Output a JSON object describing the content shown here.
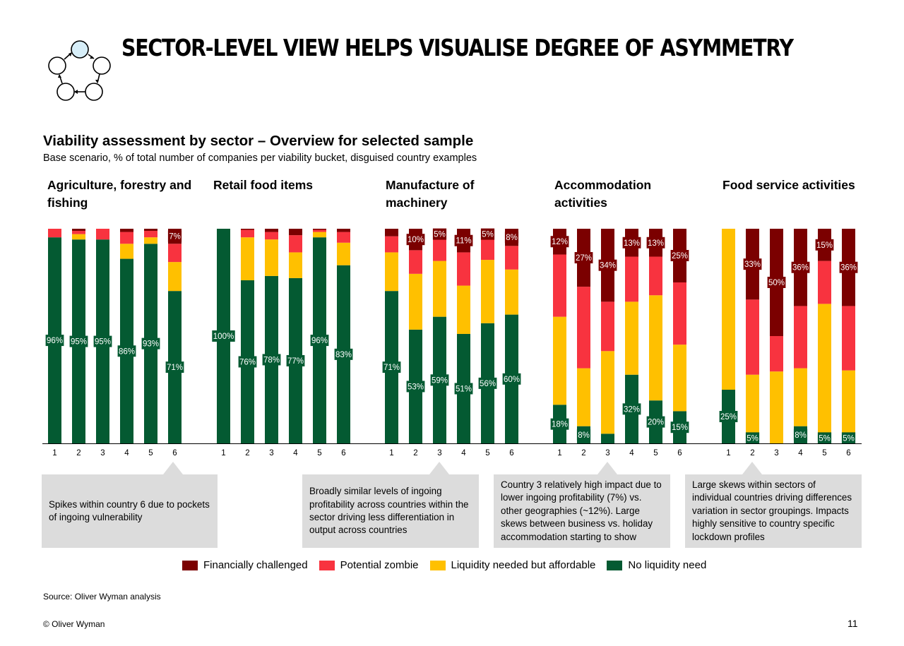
{
  "title": "SECTOR-LEVEL VIEW HELPS VISUALISE DEGREE OF ASYMMETRY",
  "subtitle_heading": "Viability assessment by sector – Overview for selected sample",
  "subtitle_detail": "Base scenario, % of total number of companies per viability bucket, disguised country examples",
  "logo_icon": "cycle-circles-icon",
  "colors": {
    "financially_challenged": "#7b0000",
    "potential_zombie": "#f8333f",
    "liquidity_needed": "#ffc000",
    "no_liquidity_need": "#045a32",
    "callout_bg": "#dcdcdc"
  },
  "legend": [
    {
      "label": "Financially challenged",
      "color": "#7b0000"
    },
    {
      "label": "Potential zombie",
      "color": "#f8333f"
    },
    {
      "label": "Liquidity needed but affordable",
      "color": "#ffc000"
    },
    {
      "label": "No liquidity need",
      "color": "#045a32"
    }
  ],
  "callouts": [
    {
      "text": "Spikes within country 6 due to pockets of ingoing vulnerability",
      "points_to": "Agriculture, forestry and fishing – country 6"
    },
    {
      "text": "Broadly similar levels of ingoing profitability across countries within the sector driving less differentiation in output across countries",
      "points_to": "Manufacture of machinery – country 3"
    },
    {
      "text": "Country 3 relatively high impact due to lower ingoing profitability (7%) vs. other geographies (~12%). Large skews between business vs. holiday accommodation starting to show",
      "points_to": "Accommodation activities – country 3"
    },
    {
      "text": "Large skews within sectors of individual countries driving differences variation in sector groupings. Impacts highly sensitive to country specific lockdown profiles",
      "points_to": "Food service activities – country 2"
    }
  ],
  "source": "Source: Oliver Wyman analysis",
  "copyright": "© Oliver Wyman",
  "page_number": "11",
  "chart_data": {
    "type": "bar",
    "stacked": true,
    "normalized_percent": true,
    "categories": [
      "1",
      "2",
      "3",
      "4",
      "5",
      "6"
    ],
    "series_order_bottom_to_top": [
      "No liquidity need",
      "Liquidity needed but affordable",
      "Potential zombie",
      "Financially challenged"
    ],
    "panels": [
      {
        "title": "Agriculture, forestry and fishing",
        "bars": [
          {
            "category": "1",
            "no_liquidity": 96,
            "liquidity": 0,
            "zombie": 4,
            "challenged": 0
          },
          {
            "category": "2",
            "no_liquidity": 95,
            "liquidity": 2.5,
            "zombie": 1.5,
            "challenged": 1
          },
          {
            "category": "3",
            "no_liquidity": 95,
            "liquidity": 0,
            "zombie": 5,
            "challenged": 0
          },
          {
            "category": "4",
            "no_liquidity": 86,
            "liquidity": 7,
            "zombie": 5.5,
            "challenged": 1.5
          },
          {
            "category": "5",
            "no_liquidity": 93,
            "liquidity": 3,
            "zombie": 3,
            "challenged": 1
          },
          {
            "category": "6",
            "no_liquidity": 71,
            "liquidity": 13.5,
            "zombie": 8.5,
            "challenged": 7
          }
        ],
        "labels": [
          {
            "category": "1",
            "series": "no_liquidity",
            "text": "96%"
          },
          {
            "category": "2",
            "series": "no_liquidity",
            "text": "95%"
          },
          {
            "category": "3",
            "series": "no_liquidity",
            "text": "95%"
          },
          {
            "category": "4",
            "series": "no_liquidity",
            "text": "86%"
          },
          {
            "category": "5",
            "series": "no_liquidity",
            "text": "93%"
          },
          {
            "category": "6",
            "series": "no_liquidity",
            "text": "71%"
          },
          {
            "category": "6",
            "series": "challenged",
            "text": "7%"
          }
        ]
      },
      {
        "title": "Retail food items",
        "bars": [
          {
            "category": "1",
            "no_liquidity": 100,
            "liquidity": 0,
            "zombie": 0,
            "challenged": 0
          },
          {
            "category": "2",
            "no_liquidity": 76,
            "liquidity": 20,
            "zombie": 3.5,
            "challenged": 0.5
          },
          {
            "category": "3",
            "no_liquidity": 78,
            "liquidity": 17,
            "zombie": 3.5,
            "challenged": 1.5
          },
          {
            "category": "4",
            "no_liquidity": 77,
            "liquidity": 12,
            "zombie": 8,
            "challenged": 3
          },
          {
            "category": "5",
            "no_liquidity": 96,
            "liquidity": 2.5,
            "zombie": 1,
            "challenged": 0.5
          },
          {
            "category": "6",
            "no_liquidity": 83,
            "liquidity": 10.5,
            "zombie": 5,
            "challenged": 1.5
          }
        ],
        "labels": [
          {
            "category": "1",
            "series": "no_liquidity",
            "text": "100%"
          },
          {
            "category": "2",
            "series": "no_liquidity",
            "text": "76%"
          },
          {
            "category": "3",
            "series": "no_liquidity",
            "text": "78%"
          },
          {
            "category": "4",
            "series": "no_liquidity",
            "text": "77%"
          },
          {
            "category": "5",
            "series": "no_liquidity",
            "text": "96%"
          },
          {
            "category": "6",
            "series": "no_liquidity",
            "text": "83%"
          }
        ]
      },
      {
        "title": "Manufacture of machinery",
        "bars": [
          {
            "category": "1",
            "no_liquidity": 71,
            "liquidity": 18,
            "zombie": 7.5,
            "challenged": 3.5
          },
          {
            "category": "2",
            "no_liquidity": 53,
            "liquidity": 26,
            "zombie": 11,
            "challenged": 10
          },
          {
            "category": "3",
            "no_liquidity": 59,
            "liquidity": 26,
            "zombie": 10,
            "challenged": 5
          },
          {
            "category": "4",
            "no_liquidity": 51,
            "liquidity": 22.5,
            "zombie": 15.5,
            "challenged": 11
          },
          {
            "category": "5",
            "no_liquidity": 56,
            "liquidity": 29.5,
            "zombie": 9.5,
            "challenged": 5
          },
          {
            "category": "6",
            "no_liquidity": 60,
            "liquidity": 21,
            "zombie": 11,
            "challenged": 8
          }
        ],
        "labels": [
          {
            "category": "1",
            "series": "no_liquidity",
            "text": "71%"
          },
          {
            "category": "2",
            "series": "no_liquidity",
            "text": "53%"
          },
          {
            "category": "3",
            "series": "no_liquidity",
            "text": "59%"
          },
          {
            "category": "4",
            "series": "no_liquidity",
            "text": "51%"
          },
          {
            "category": "5",
            "series": "no_liquidity",
            "text": "56%"
          },
          {
            "category": "6",
            "series": "no_liquidity",
            "text": "60%"
          },
          {
            "category": "2",
            "series": "challenged",
            "text": "10%"
          },
          {
            "category": "3",
            "series": "challenged",
            "text": "5%"
          },
          {
            "category": "4",
            "series": "challenged",
            "text": "11%"
          },
          {
            "category": "5",
            "series": "challenged",
            "text": "5%"
          },
          {
            "category": "6",
            "series": "challenged",
            "text": "8%"
          }
        ]
      },
      {
        "title": "Accommodation activities",
        "bars": [
          {
            "category": "1",
            "no_liquidity": 18,
            "liquidity": 41,
            "zombie": 29,
            "challenged": 12
          },
          {
            "category": "2",
            "no_liquidity": 8,
            "liquidity": 27,
            "zombie": 38,
            "challenged": 27
          },
          {
            "category": "3",
            "no_liquidity": 4.5,
            "liquidity": 38.5,
            "zombie": 23,
            "challenged": 34
          },
          {
            "category": "4",
            "no_liquidity": 32,
            "liquidity": 34,
            "zombie": 21,
            "challenged": 13
          },
          {
            "category": "5",
            "no_liquidity": 20,
            "liquidity": 49,
            "zombie": 18,
            "challenged": 13
          },
          {
            "category": "6",
            "no_liquidity": 15,
            "liquidity": 31,
            "zombie": 29,
            "challenged": 25
          }
        ],
        "labels": [
          {
            "category": "1",
            "series": "no_liquidity",
            "text": "18%"
          },
          {
            "category": "2",
            "series": "no_liquidity",
            "text": "8%"
          },
          {
            "category": "4",
            "series": "no_liquidity",
            "text": "32%"
          },
          {
            "category": "5",
            "series": "no_liquidity",
            "text": "20%"
          },
          {
            "category": "6",
            "series": "no_liquidity",
            "text": "15%"
          },
          {
            "category": "1",
            "series": "challenged",
            "text": "12%"
          },
          {
            "category": "2",
            "series": "challenged",
            "text": "27%"
          },
          {
            "category": "3",
            "series": "challenged",
            "text": "34%"
          },
          {
            "category": "4",
            "series": "challenged",
            "text": "13%"
          },
          {
            "category": "5",
            "series": "challenged",
            "text": "13%"
          },
          {
            "category": "6",
            "series": "challenged",
            "text": "25%"
          }
        ]
      },
      {
        "title": "Food service activities",
        "bars": [
          {
            "category": "1",
            "no_liquidity": 25,
            "liquidity": 75,
            "zombie": 0,
            "challenged": 0
          },
          {
            "category": "2",
            "no_liquidity": 5,
            "liquidity": 27,
            "zombie": 35,
            "challenged": 33
          },
          {
            "category": "3",
            "no_liquidity": 0,
            "liquidity": 33.5,
            "zombie": 16.5,
            "challenged": 50
          },
          {
            "category": "4",
            "no_liquidity": 8,
            "liquidity": 27,
            "zombie": 29,
            "challenged": 36
          },
          {
            "category": "5",
            "no_liquidity": 5,
            "liquidity": 60,
            "zombie": 20,
            "challenged": 15
          },
          {
            "category": "6",
            "no_liquidity": 5,
            "liquidity": 29,
            "zombie": 30,
            "challenged": 36
          }
        ],
        "labels": [
          {
            "category": "1",
            "series": "no_liquidity",
            "text": "25%"
          },
          {
            "category": "2",
            "series": "no_liquidity",
            "text": "5%"
          },
          {
            "category": "4",
            "series": "no_liquidity",
            "text": "8%"
          },
          {
            "category": "5",
            "series": "no_liquidity",
            "text": "5%"
          },
          {
            "category": "6",
            "series": "no_liquidity",
            "text": "5%"
          },
          {
            "category": "2",
            "series": "challenged",
            "text": "33%"
          },
          {
            "category": "3",
            "series": "challenged",
            "text": "50%"
          },
          {
            "category": "4",
            "series": "challenged",
            "text": "36%"
          },
          {
            "category": "5",
            "series": "challenged",
            "text": "15%"
          },
          {
            "category": "6",
            "series": "challenged",
            "text": "36%"
          }
        ]
      }
    ]
  }
}
